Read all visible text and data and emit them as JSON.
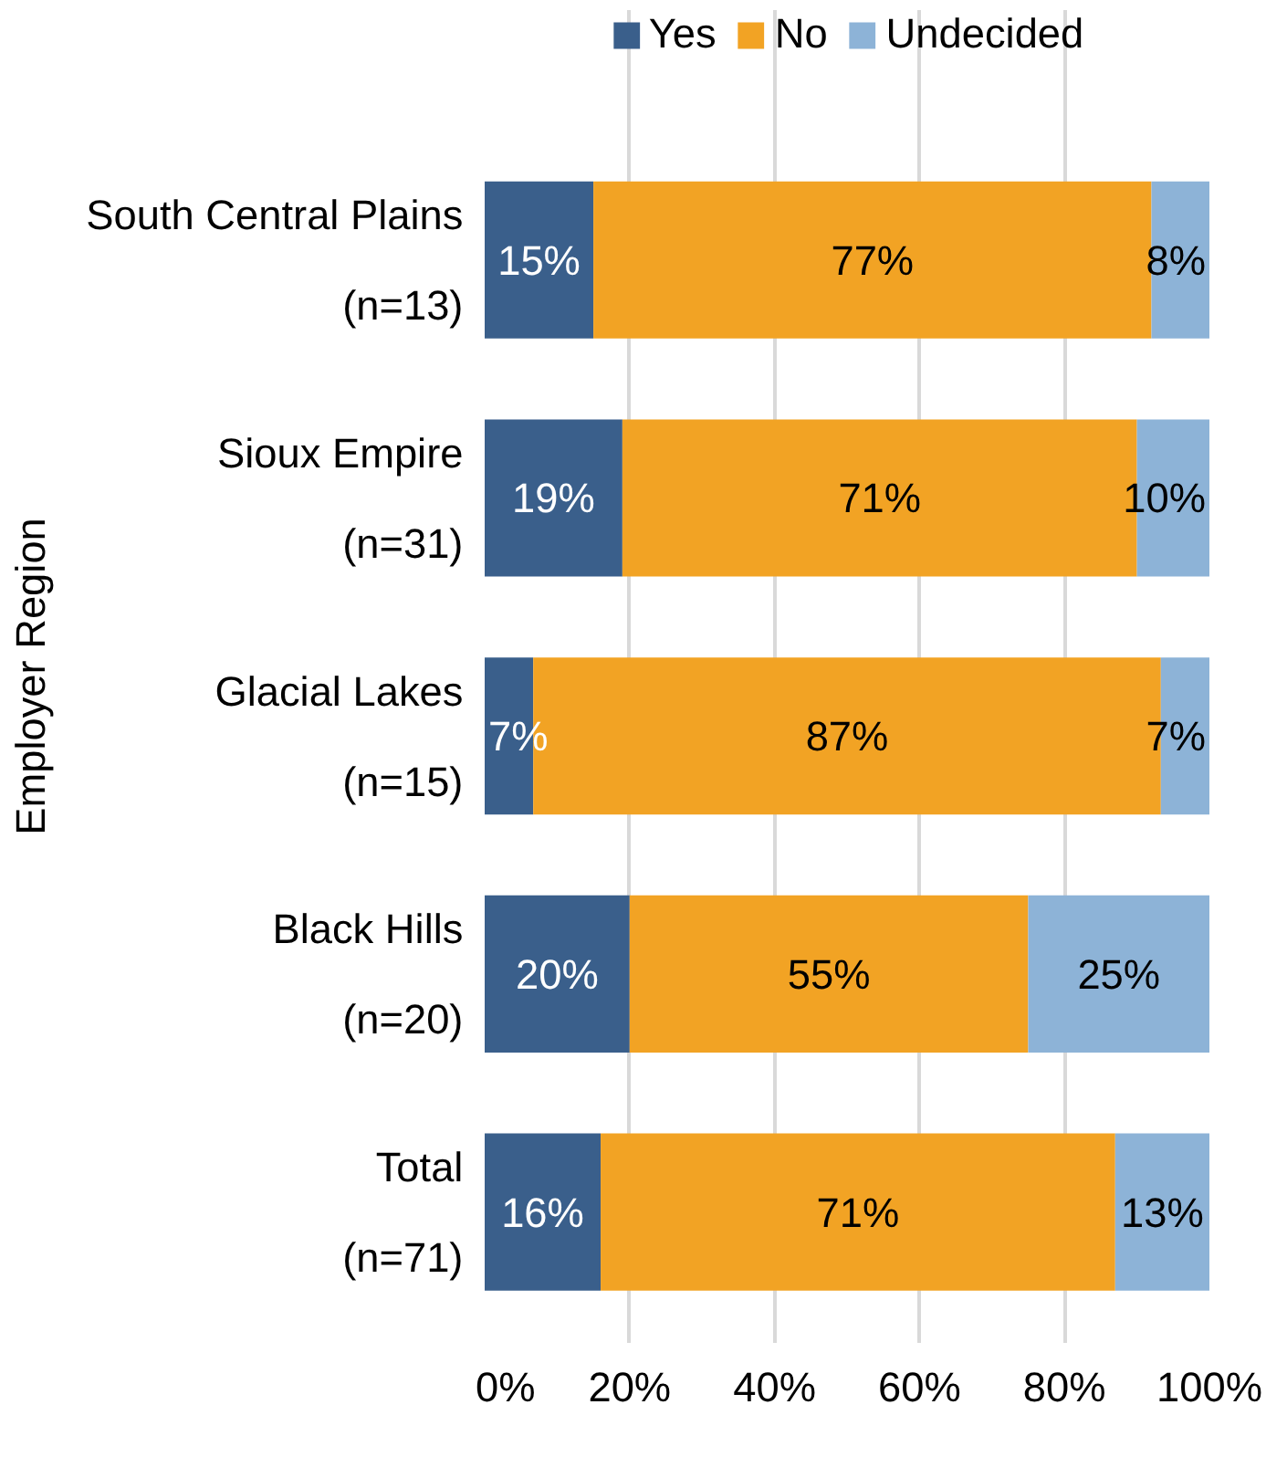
{
  "chart_data": {
    "type": "bar",
    "orientation": "horizontal",
    "stacked": true,
    "ylabel": "Employer Region",
    "categories": [
      "South Central Plains\n(n=13)",
      "Sioux Empire\n(n=31)",
      "Glacial Lakes\n(n=15)",
      "Black Hills\n(n=20)",
      "Total\n(n=71)"
    ],
    "series": [
      {
        "name": "Yes",
        "color": "#3a5f8b",
        "values": [
          15,
          19,
          6.7,
          20,
          16
        ],
        "value_labels": [
          "15%",
          "19%",
          "7%",
          "20%",
          "16%"
        ]
      },
      {
        "name": "No",
        "color": "#f2a324",
        "values": [
          77,
          71,
          86.6,
          55,
          71
        ],
        "value_labels": [
          "77%",
          "71%",
          "87%",
          "55%",
          "71%"
        ]
      },
      {
        "name": "Undecided",
        "color": "#8db3d7",
        "values": [
          8,
          10,
          6.7,
          25,
          13
        ],
        "value_labels": [
          "8%",
          "10%",
          "7%",
          "25%",
          "13%"
        ]
      }
    ],
    "xlim": [
      0,
      100
    ],
    "xticks": [
      {
        "value": 0,
        "label": "0%"
      },
      {
        "value": 20,
        "label": "20%"
      },
      {
        "value": 40,
        "label": "40%"
      },
      {
        "value": 60,
        "label": "60%"
      },
      {
        "value": 80,
        "label": "80%"
      },
      {
        "value": 100,
        "label": "100%"
      }
    ],
    "grid": "x",
    "legend": "top"
  }
}
